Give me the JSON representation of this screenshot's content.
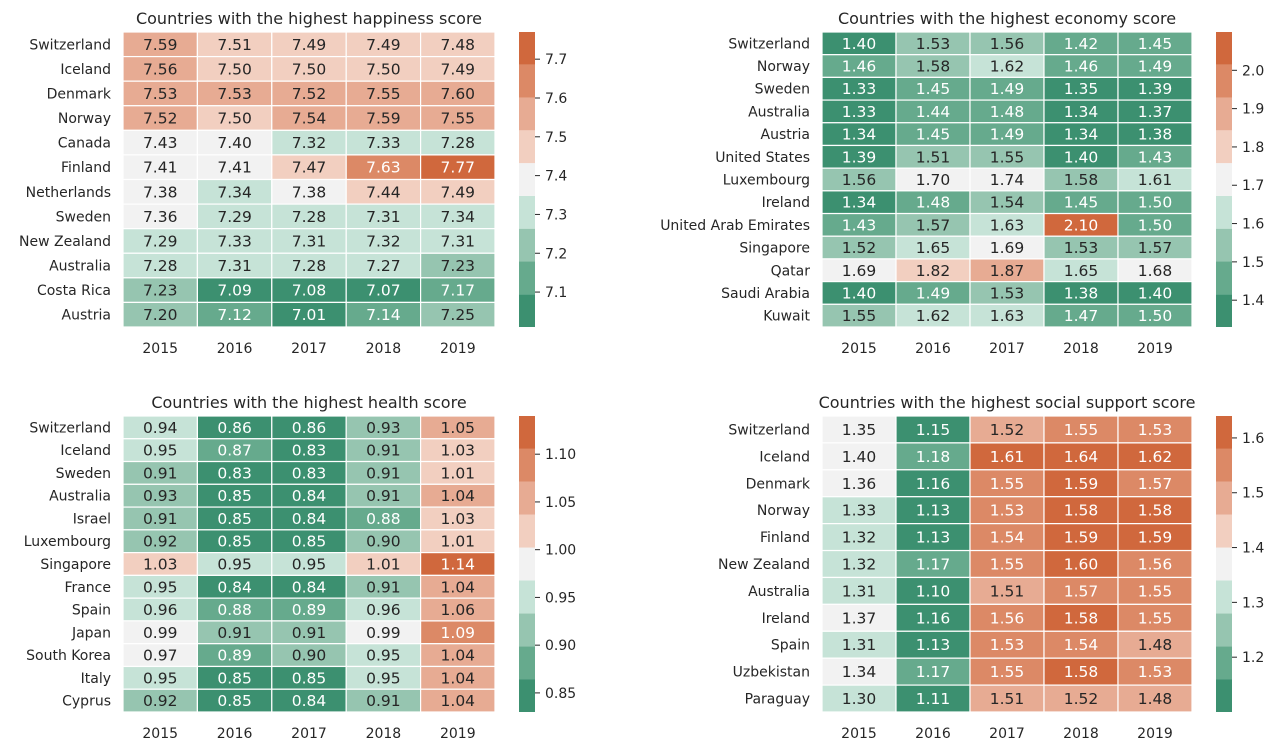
{
  "colors": {
    "palette_green_to_orange": [
      "#3c9070",
      "#66aa8d",
      "#96c5b0",
      "#c6e3d7",
      "#f2f2f2",
      "#f2cfc0",
      "#e7ab93",
      "#dc8966",
      "#d0683d"
    ]
  },
  "chart_data": [
    {
      "type": "heatmap",
      "title": "Countries with the highest happiness score",
      "x": [
        "2015",
        "2016",
        "2017",
        "2018",
        "2019"
      ],
      "y": [
        "Switzerland",
        "Iceland",
        "Denmark",
        "Norway",
        "Canada",
        "Finland",
        "Netherlands",
        "Sweden",
        "New Zealand",
        "Australia",
        "Costa Rica",
        "Austria"
      ],
      "values": [
        [
          7.59,
          7.51,
          7.49,
          7.49,
          7.48
        ],
        [
          7.56,
          7.5,
          7.5,
          7.5,
          7.49
        ],
        [
          7.53,
          7.53,
          7.52,
          7.55,
          7.6
        ],
        [
          7.52,
          7.5,
          7.54,
          7.59,
          7.55
        ],
        [
          7.43,
          7.4,
          7.32,
          7.33,
          7.28
        ],
        [
          7.41,
          7.41,
          7.47,
          7.63,
          7.77
        ],
        [
          7.38,
          7.34,
          7.38,
          7.44,
          7.49
        ],
        [
          7.36,
          7.29,
          7.28,
          7.31,
          7.34
        ],
        [
          7.29,
          7.33,
          7.31,
          7.32,
          7.31
        ],
        [
          7.28,
          7.31,
          7.28,
          7.27,
          7.23
        ],
        [
          7.23,
          7.09,
          7.08,
          7.07,
          7.17
        ],
        [
          7.2,
          7.12,
          7.01,
          7.14,
          7.25
        ]
      ],
      "colorbar": {
        "range": [
          7.01,
          7.77
        ],
        "center": 7.39,
        "ticks": [
          "7.1",
          "7.2",
          "7.3",
          "7.4",
          "7.5",
          "7.6",
          "7.7"
        ]
      }
    },
    {
      "type": "heatmap",
      "title": "Countries with the highest economy score",
      "x": [
        "2015",
        "2016",
        "2017",
        "2018",
        "2019"
      ],
      "y": [
        "Switzerland",
        "Norway",
        "Sweden",
        "Australia",
        "Austria",
        "United States",
        "Luxembourg",
        "Ireland",
        "United Arab Emirates",
        "Singapore",
        "Qatar",
        "Saudi Arabia",
        "Kuwait"
      ],
      "values": [
        [
          1.4,
          1.53,
          1.56,
          1.42,
          1.45
        ],
        [
          1.46,
          1.58,
          1.62,
          1.46,
          1.49
        ],
        [
          1.33,
          1.45,
          1.49,
          1.35,
          1.39
        ],
        [
          1.33,
          1.44,
          1.48,
          1.34,
          1.37
        ],
        [
          1.34,
          1.45,
          1.49,
          1.34,
          1.38
        ],
        [
          1.39,
          1.51,
          1.55,
          1.4,
          1.43
        ],
        [
          1.56,
          1.7,
          1.74,
          1.58,
          1.61
        ],
        [
          1.34,
          1.48,
          1.54,
          1.45,
          1.5
        ],
        [
          1.43,
          1.57,
          1.63,
          2.1,
          1.5
        ],
        [
          1.52,
          1.65,
          1.69,
          1.53,
          1.57
        ],
        [
          1.69,
          1.82,
          1.87,
          1.65,
          1.68
        ],
        [
          1.4,
          1.49,
          1.53,
          1.38,
          1.4
        ],
        [
          1.55,
          1.62,
          1.63,
          1.47,
          1.5
        ]
      ],
      "colorbar": {
        "range": [
          1.33,
          2.1
        ],
        "center": 1.715,
        "ticks": [
          "1.4",
          "1.5",
          "1.6",
          "1.7",
          "1.8",
          "1.9",
          "2.0"
        ]
      }
    },
    {
      "type": "heatmap",
      "title": "Countries with the highest health score",
      "x": [
        "2015",
        "2016",
        "2017",
        "2018",
        "2019"
      ],
      "y": [
        "Switzerland",
        "Iceland",
        "Sweden",
        "Australia",
        "Israel",
        "Luxembourg",
        "Singapore",
        "France",
        "Spain",
        "Japan",
        "South Korea",
        "Italy",
        "Cyprus"
      ],
      "values": [
        [
          0.94,
          0.86,
          0.86,
          0.93,
          1.05
        ],
        [
          0.95,
          0.87,
          0.83,
          0.91,
          1.03
        ],
        [
          0.91,
          0.83,
          0.83,
          0.91,
          1.01
        ],
        [
          0.93,
          0.85,
          0.84,
          0.91,
          1.04
        ],
        [
          0.91,
          0.85,
          0.84,
          0.88,
          1.03
        ],
        [
          0.92,
          0.85,
          0.85,
          0.9,
          1.01
        ],
        [
          1.03,
          0.95,
          0.95,
          1.01,
          1.14
        ],
        [
          0.95,
          0.84,
          0.84,
          0.91,
          1.04
        ],
        [
          0.96,
          0.88,
          0.89,
          0.96,
          1.06
        ],
        [
          0.99,
          0.91,
          0.91,
          0.99,
          1.09
        ],
        [
          0.97,
          0.89,
          0.9,
          0.95,
          1.04
        ],
        [
          0.95,
          0.85,
          0.85,
          0.95,
          1.04
        ],
        [
          0.92,
          0.85,
          0.84,
          0.91,
          1.04
        ]
      ],
      "colorbar": {
        "range": [
          0.83,
          1.14
        ],
        "center": 0.985,
        "ticks": [
          "0.85",
          "0.90",
          "0.95",
          "1.00",
          "1.05",
          "1.10"
        ]
      }
    },
    {
      "type": "heatmap",
      "title": "Countries with the highest social support score",
      "x": [
        "2015",
        "2016",
        "2017",
        "2018",
        "2019"
      ],
      "y": [
        "Switzerland",
        "Iceland",
        "Denmark",
        "Norway",
        "Finland",
        "New Zealand",
        "Australia",
        "Ireland",
        "Spain",
        "Uzbekistan",
        "Paraguay"
      ],
      "values": [
        [
          1.35,
          1.15,
          1.52,
          1.55,
          1.53
        ],
        [
          1.4,
          1.18,
          1.61,
          1.64,
          1.62
        ],
        [
          1.36,
          1.16,
          1.55,
          1.59,
          1.57
        ],
        [
          1.33,
          1.13,
          1.53,
          1.58,
          1.58
        ],
        [
          1.32,
          1.13,
          1.54,
          1.59,
          1.59
        ],
        [
          1.32,
          1.17,
          1.55,
          1.6,
          1.56
        ],
        [
          1.31,
          1.1,
          1.51,
          1.57,
          1.55
        ],
        [
          1.37,
          1.16,
          1.56,
          1.58,
          1.55
        ],
        [
          1.31,
          1.13,
          1.53,
          1.54,
          1.48
        ],
        [
          1.34,
          1.17,
          1.55,
          1.58,
          1.53
        ],
        [
          1.3,
          1.11,
          1.51,
          1.52,
          1.48
        ]
      ],
      "colorbar": {
        "range": [
          1.1,
          1.64
        ],
        "center": 1.37,
        "ticks": [
          "1.2",
          "1.3",
          "1.4",
          "1.5",
          "1.6"
        ]
      }
    }
  ]
}
